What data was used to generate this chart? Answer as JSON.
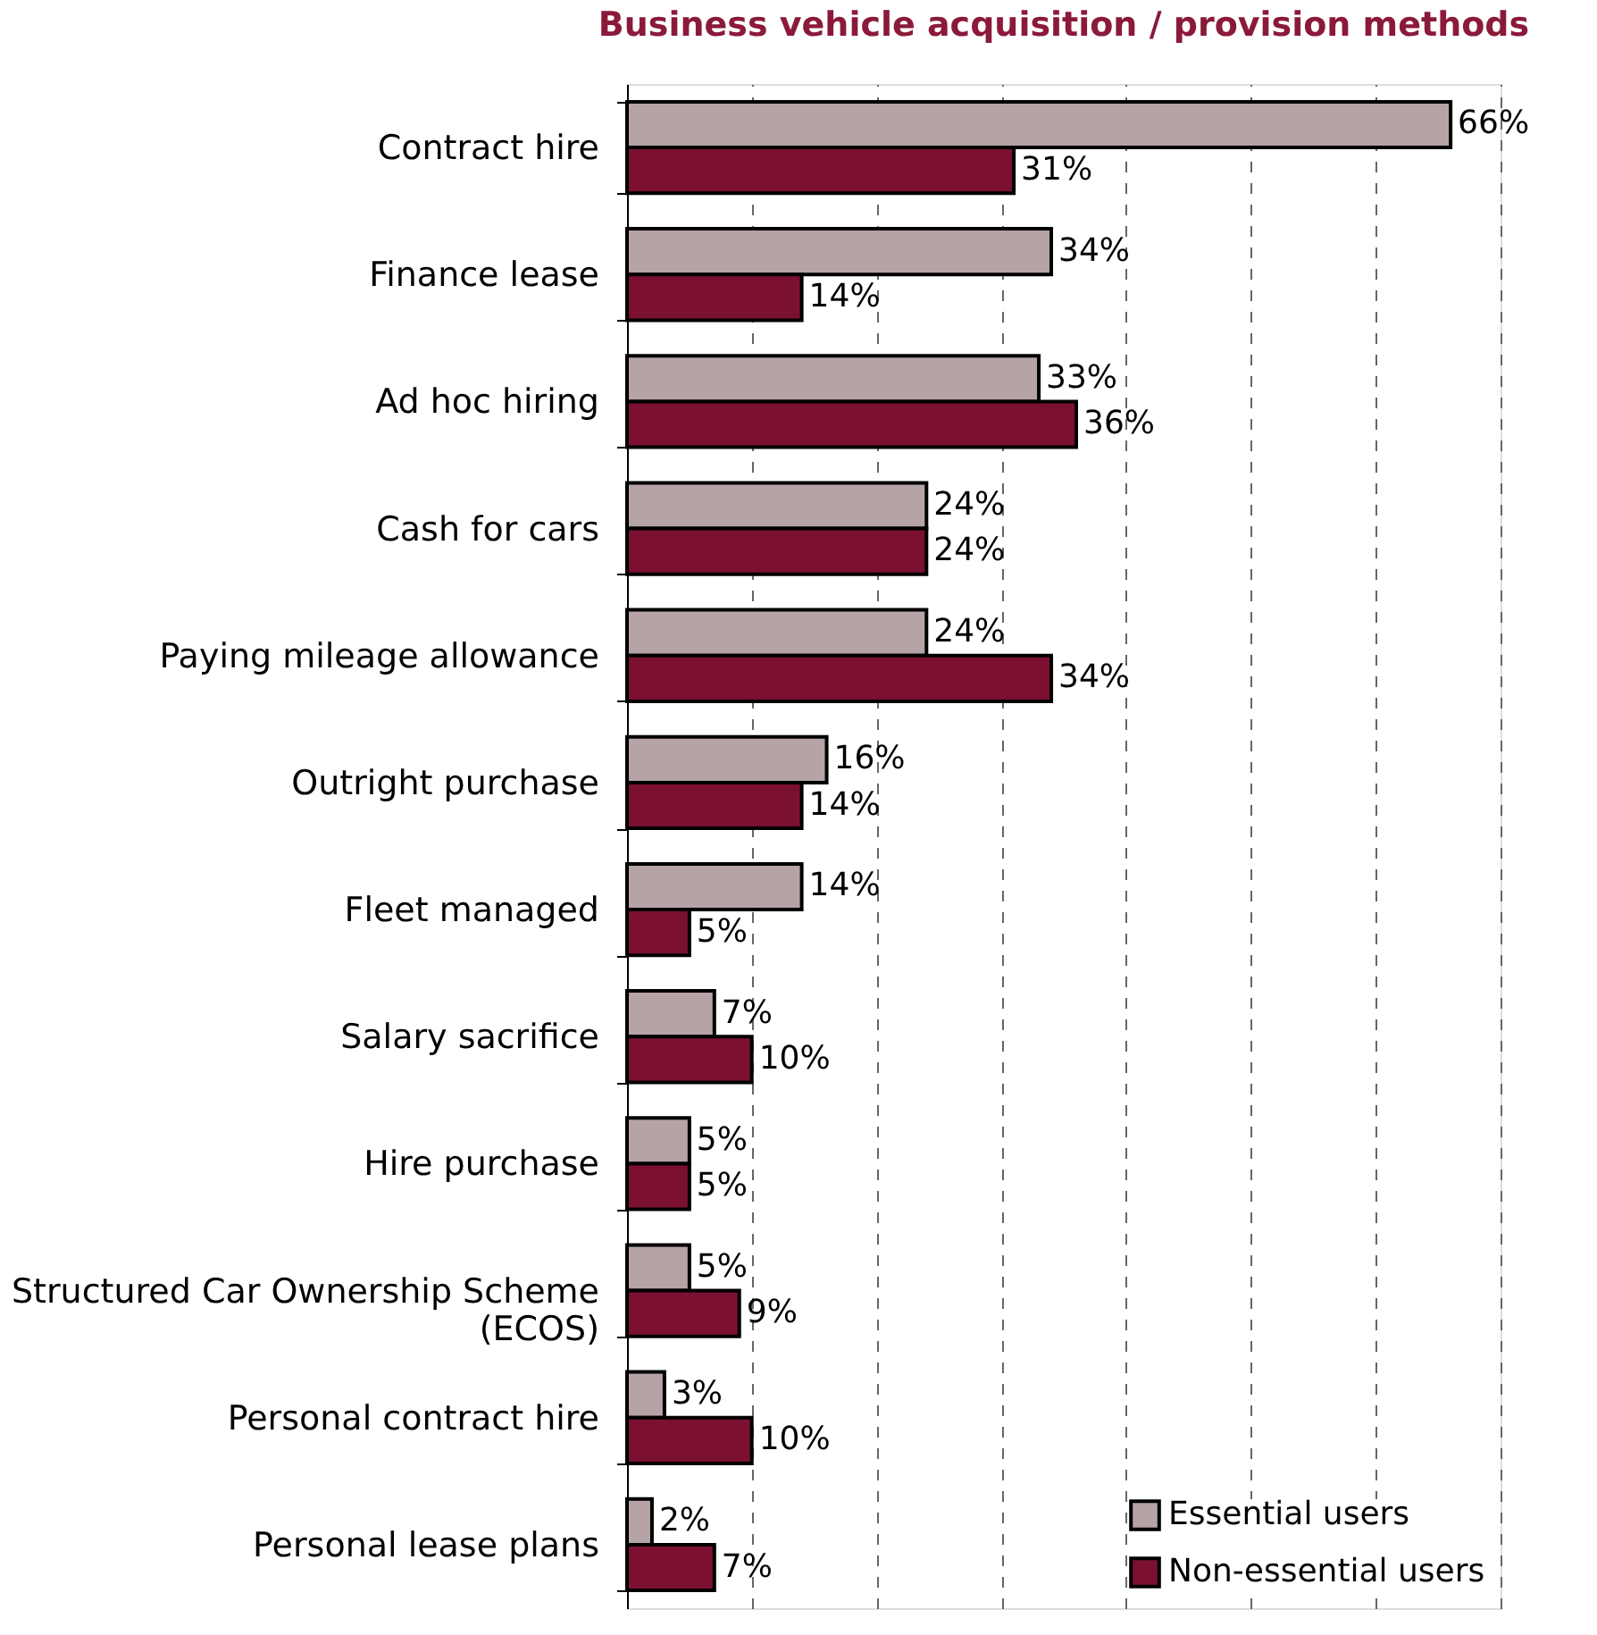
{
  "chart_data": {
    "type": "bar",
    "orientation": "horizontal",
    "title": "Business vehicle acquisition / provision methods",
    "categories": [
      "Contract hire",
      "Finance lease",
      "Ad hoc hiring",
      "Cash for cars",
      "Paying mileage allowance",
      "Outright purchase",
      "Fleet managed",
      "Salary sacrifice",
      "Hire purchase",
      "Structured Car Ownership Scheme\n(ECOS)",
      "Personal contract hire",
      "Personal lease plans"
    ],
    "series": [
      {
        "name": "Essential users",
        "color": "#b5a3a5",
        "values": [
          66,
          34,
          33,
          24,
          24,
          16,
          14,
          7,
          5,
          5,
          3,
          2
        ],
        "value_labels": [
          "66%",
          "34%",
          "33%",
          "24%",
          "24%",
          "16%",
          "14%",
          "7%",
          "5%",
          "5%",
          "3%",
          "2%"
        ]
      },
      {
        "name": "Non-essential users",
        "color": "#7b1030",
        "values": [
          31,
          14,
          36,
          24,
          34,
          14,
          5,
          10,
          5,
          9,
          10,
          7
        ],
        "value_labels": [
          "31%",
          "14%",
          "36%",
          "24%",
          "34%",
          "14%",
          "5%",
          "10%",
          "5%",
          "9%",
          "10%",
          "7%"
        ]
      }
    ],
    "xlim": [
      0,
      70
    ],
    "xticks": [
      {
        "value": 0,
        "label": null
      },
      {
        "value": 10,
        "label": null
      },
      {
        "value": 20,
        "label": null
      },
      {
        "value": 30,
        "label": null
      },
      {
        "value": 40,
        "label": null
      },
      {
        "value": 50,
        "label": null
      },
      {
        "value": 60,
        "label": null
      },
      {
        "value": 70,
        "label": null
      }
    ],
    "grid": "x",
    "tick_labels": "y",
    "legend": "bottom right"
  }
}
